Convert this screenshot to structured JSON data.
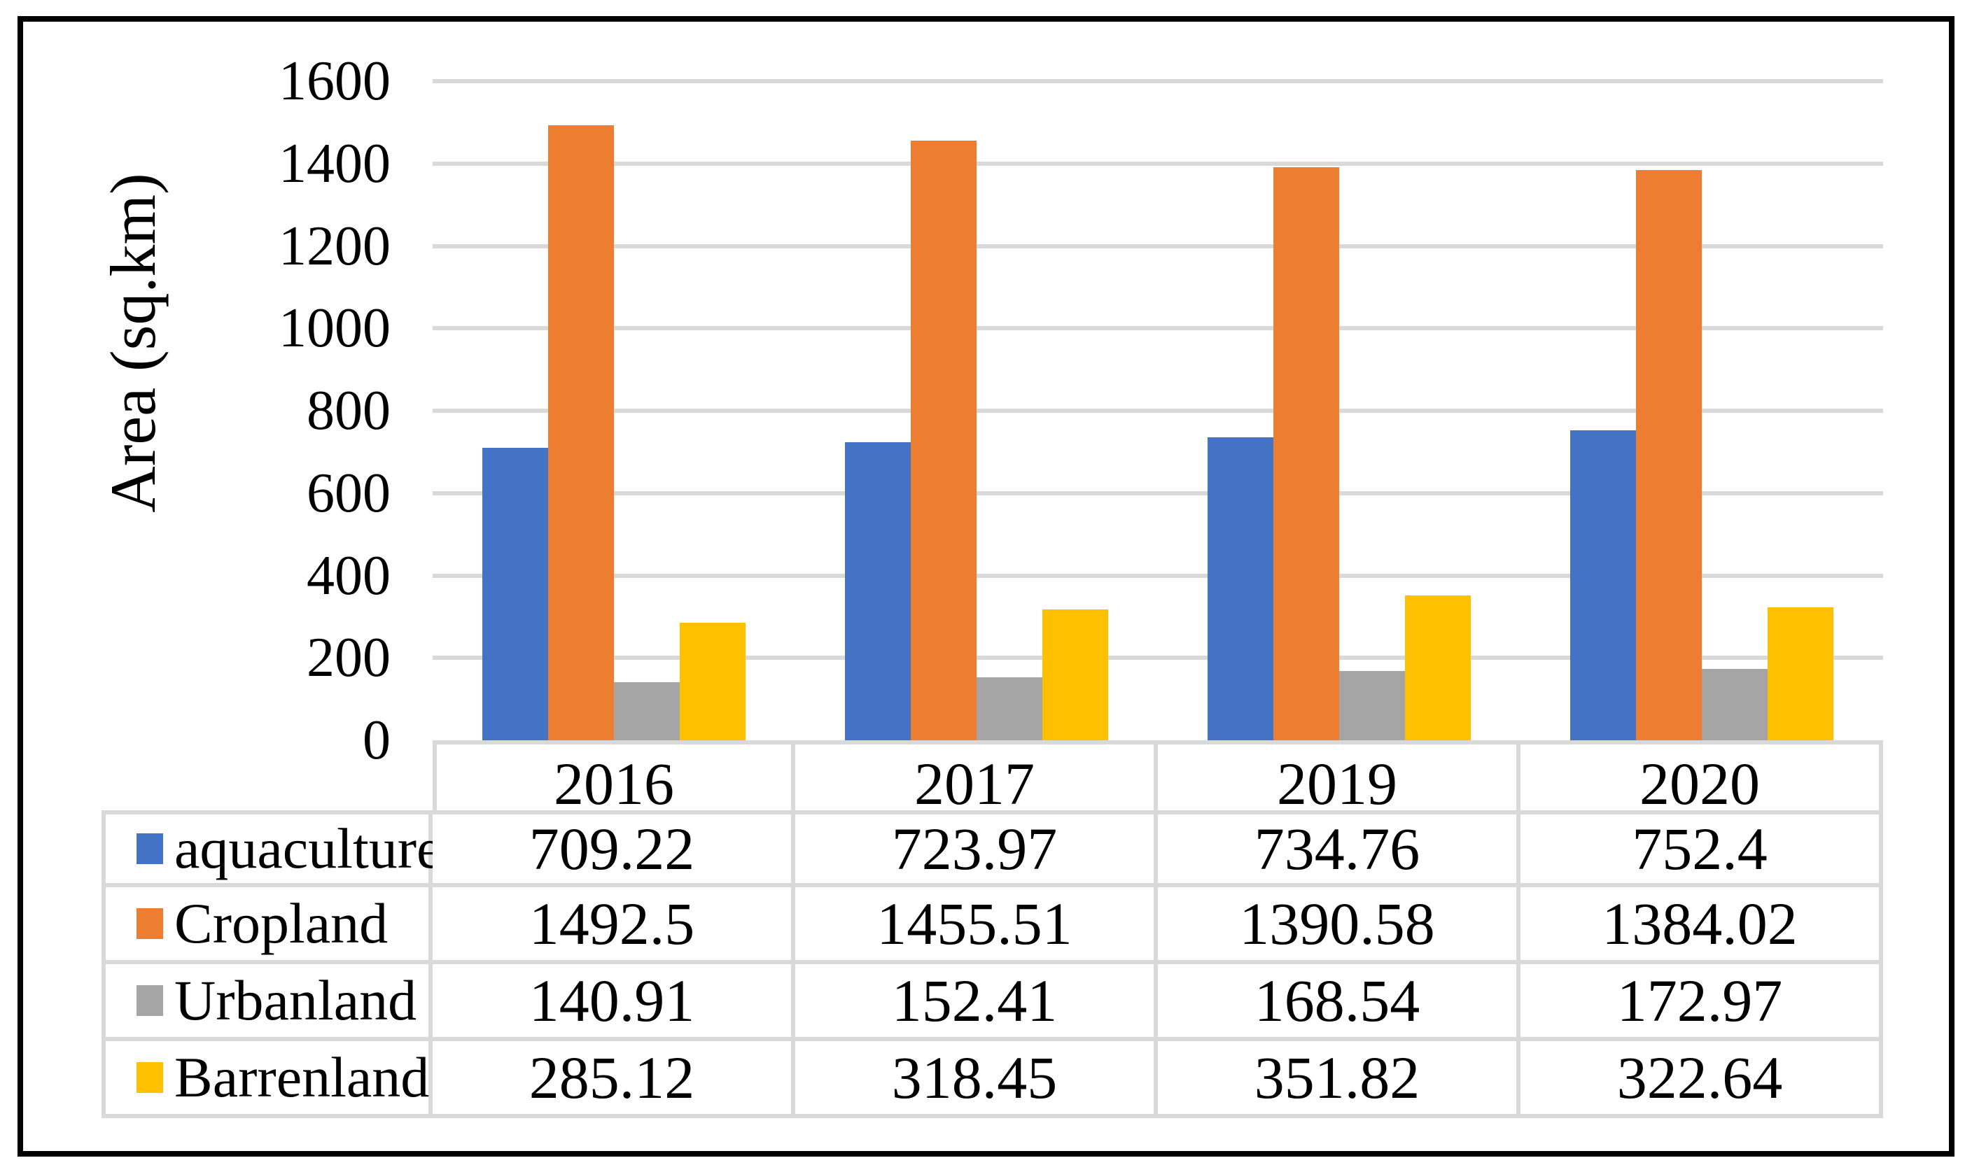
{
  "chart_data": {
    "type": "bar",
    "title": "",
    "ylabel": "Area (sq.km)",
    "xlabel": "",
    "ylim": [
      0,
      1600
    ],
    "yticks": [
      0,
      200,
      400,
      600,
      800,
      1000,
      1200,
      1400,
      1600
    ],
    "grid": true,
    "legend_position": "data-table-left",
    "categories": [
      "2016",
      "2017",
      "2019",
      "2020"
    ],
    "series": [
      {
        "name": "aquaculture",
        "color": "#4472c4",
        "values": [
          709.22,
          723.97,
          734.76,
          752.4
        ]
      },
      {
        "name": "Cropland",
        "color": "#ed7d31",
        "values": [
          1492.5,
          1455.51,
          1390.58,
          1384.02
        ]
      },
      {
        "name": "Urbanland",
        "color": "#a5a5a5",
        "values": [
          140.91,
          152.41,
          168.54,
          172.97
        ]
      },
      {
        "name": "Barrenland",
        "color": "#ffc000",
        "values": [
          285.12,
          318.45,
          351.82,
          322.64
        ]
      }
    ]
  }
}
